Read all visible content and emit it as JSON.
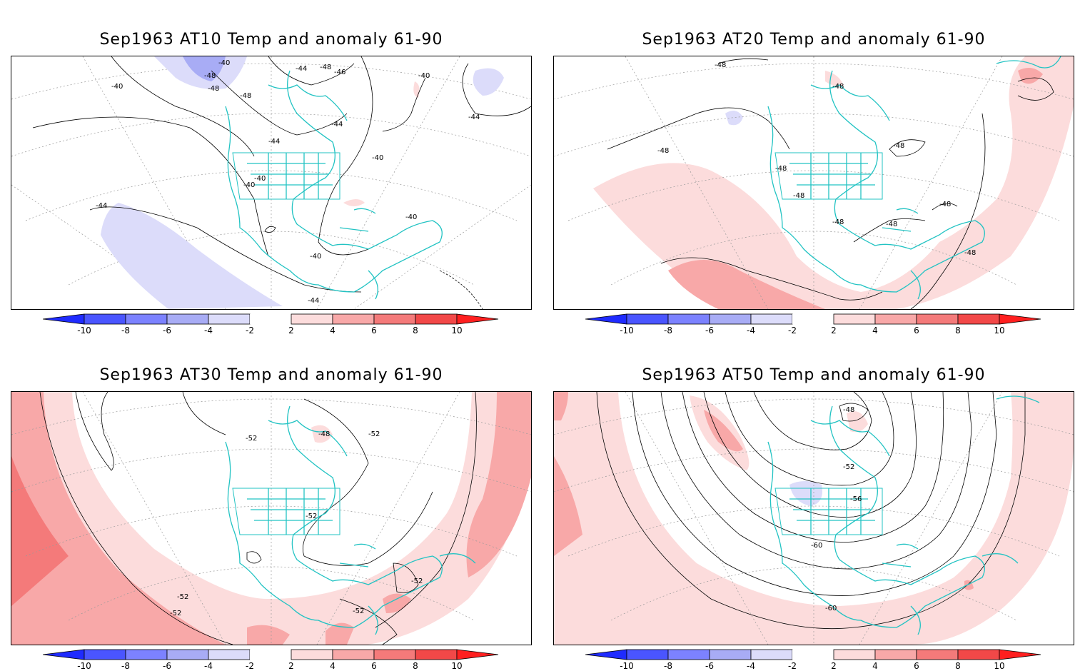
{
  "panels": [
    {
      "title": "Sep1963 AT10 Temp and anomaly 61-90",
      "contour_labels": [
        "-40",
        "-48",
        "-48",
        "-44",
        "-48",
        "-46",
        "-40",
        "-40",
        "-48",
        "-44",
        "-44",
        "-44",
        "-40",
        "-40",
        "-40",
        "-44",
        "-40",
        "-40",
        "-44"
      ]
    },
    {
      "title": "Sep1963 AT20 Temp and anomaly 61-90",
      "contour_labels": [
        "-48",
        "-48",
        "-48",
        "-48",
        "-48",
        "-48",
        "-48",
        "-48",
        "-48",
        "-48"
      ]
    },
    {
      "title": "Sep1963 AT30 Temp and anomaly 61-90",
      "contour_labels": [
        "-52",
        "-48",
        "-52",
        "-52",
        "-52",
        "-52",
        "-52",
        "-52"
      ]
    },
    {
      "title": "Sep1963 AT50 Temp and anomaly 61-90",
      "contour_labels": [
        "-48",
        "-52",
        "-56",
        "-60",
        "-60"
      ]
    }
  ],
  "colorbar": {
    "ticks": [
      "-10",
      "-8",
      "-6",
      "-4",
      "-2",
      "2",
      "4",
      "6",
      "8",
      "10"
    ],
    "colors": {
      "neg": [
        "#1f2bff",
        "#4a55ff",
        "#7c82ff",
        "#a8acf5",
        "#dcdcfa"
      ],
      "pos": [
        "#fcdcdc",
        "#f8a8a8",
        "#f47a7a",
        "#f24848",
        "#ff1f1f"
      ]
    }
  },
  "style": {
    "coast": "#22c3c3",
    "frame": "#000000"
  }
}
